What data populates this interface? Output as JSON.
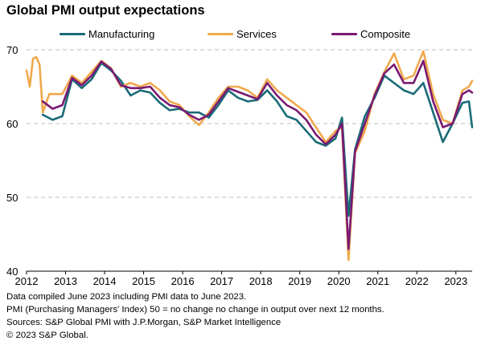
{
  "title": "Global PMI output expectations",
  "legend": [
    {
      "name": "Manufacturing",
      "color": "#1a6b78"
    },
    {
      "name": "Services",
      "color": "#f0a94c"
    },
    {
      "name": "Composite",
      "color": "#7a1a73"
    }
  ],
  "notes": [
    "Data compiled June 2023 including PMI data to June 2023.",
    "PMI (Purchasing Managers' Index) 50 = no change no change in output over next 12 months.",
    "Sources: S&P Global PMI with J.P.Morgan, S&P Market Intelligence",
    "© 2023 S&P Global."
  ],
  "chart_data": {
    "type": "line",
    "title": "Global PMI output expectations",
    "xlabel": "",
    "ylabel": "",
    "ylim": [
      40,
      70
    ],
    "xlim": [
      "2012-01",
      "2023-06"
    ],
    "yticks": [
      40,
      50,
      60,
      70
    ],
    "xticks": [
      "2012",
      "2013",
      "2014",
      "2015",
      "2016",
      "2017",
      "2018",
      "2019",
      "2020",
      "2021",
      "2022",
      "2023"
    ],
    "grid": "horizontal dashed",
    "legend_position": "top",
    "series": [
      {
        "name": "Manufacturing",
        "color": "#1a6b78",
        "points": [
          [
            "2012-06",
            61.2
          ],
          [
            "2012-09",
            60.5
          ],
          [
            "2012-12",
            61.0
          ],
          [
            "2013-03",
            66.0
          ],
          [
            "2013-06",
            64.8
          ],
          [
            "2013-09",
            66.0
          ],
          [
            "2013-12",
            68.2
          ],
          [
            "2014-03",
            67.2
          ],
          [
            "2014-06",
            65.8
          ],
          [
            "2014-09",
            63.8
          ],
          [
            "2014-12",
            64.5
          ],
          [
            "2015-03",
            64.2
          ],
          [
            "2015-06",
            62.8
          ],
          [
            "2015-09",
            61.8
          ],
          [
            "2015-12",
            62.0
          ],
          [
            "2016-03",
            61.5
          ],
          [
            "2016-06",
            61.5
          ],
          [
            "2016-09",
            60.8
          ],
          [
            "2016-12",
            62.5
          ],
          [
            "2017-03",
            64.5
          ],
          [
            "2017-06",
            63.5
          ],
          [
            "2017-09",
            63.0
          ],
          [
            "2017-12",
            63.2
          ],
          [
            "2018-03",
            64.5
          ],
          [
            "2018-06",
            63.0
          ],
          [
            "2018-09",
            61.0
          ],
          [
            "2018-12",
            60.5
          ],
          [
            "2019-03",
            59.0
          ],
          [
            "2019-06",
            57.5
          ],
          [
            "2019-09",
            57.0
          ],
          [
            "2019-12",
            58.0
          ],
          [
            "2020-02",
            60.8
          ],
          [
            "2020-04",
            47.5
          ],
          [
            "2020-06",
            56.5
          ],
          [
            "2020-09",
            61.0
          ],
          [
            "2020-12",
            63.5
          ],
          [
            "2021-03",
            66.5
          ],
          [
            "2021-06",
            65.5
          ],
          [
            "2021-09",
            64.5
          ],
          [
            "2021-12",
            64.0
          ],
          [
            "2022-03",
            65.5
          ],
          [
            "2022-06",
            61.5
          ],
          [
            "2022-09",
            57.5
          ],
          [
            "2022-12",
            60.0
          ],
          [
            "2023-03",
            62.8
          ],
          [
            "2023-05",
            63.0
          ],
          [
            "2023-06",
            59.5
          ]
        ]
      },
      {
        "name": "Services",
        "color": "#f0a94c",
        "points": [
          [
            "2012-01",
            67.2
          ],
          [
            "2012-02",
            65.0
          ],
          [
            "2012-03",
            68.8
          ],
          [
            "2012-04",
            69.0
          ],
          [
            "2012-05",
            68.0
          ],
          [
            "2012-06",
            61.5
          ],
          [
            "2012-08",
            64.0
          ],
          [
            "2012-12",
            64.0
          ],
          [
            "2013-03",
            66.5
          ],
          [
            "2013-06",
            65.5
          ],
          [
            "2013-09",
            67.0
          ],
          [
            "2013-12",
            68.5
          ],
          [
            "2014-03",
            67.5
          ],
          [
            "2014-06",
            65.0
          ],
          [
            "2014-09",
            65.5
          ],
          [
            "2014-12",
            65.0
          ],
          [
            "2015-03",
            65.5
          ],
          [
            "2015-06",
            64.5
          ],
          [
            "2015-09",
            63.0
          ],
          [
            "2015-12",
            62.5
          ],
          [
            "2016-03",
            61.0
          ],
          [
            "2016-06",
            59.8
          ],
          [
            "2016-09",
            61.5
          ],
          [
            "2016-12",
            63.5
          ],
          [
            "2017-03",
            65.0
          ],
          [
            "2017-06",
            65.0
          ],
          [
            "2017-09",
            64.5
          ],
          [
            "2017-12",
            63.5
          ],
          [
            "2018-03",
            66.0
          ],
          [
            "2018-06",
            64.5
          ],
          [
            "2018-09",
            63.5
          ],
          [
            "2018-12",
            62.5
          ],
          [
            "2019-03",
            61.5
          ],
          [
            "2019-06",
            59.5
          ],
          [
            "2019-09",
            57.5
          ],
          [
            "2019-12",
            59.0
          ],
          [
            "2020-02",
            59.5
          ],
          [
            "2020-04",
            41.5
          ],
          [
            "2020-06",
            56.0
          ],
          [
            "2020-09",
            59.0
          ],
          [
            "2020-12",
            64.0
          ],
          [
            "2021-03",
            67.0
          ],
          [
            "2021-06",
            69.5
          ],
          [
            "2021-09",
            66.0
          ],
          [
            "2021-12",
            66.5
          ],
          [
            "2022-03",
            69.8
          ],
          [
            "2022-06",
            64.0
          ],
          [
            "2022-09",
            60.5
          ],
          [
            "2022-12",
            60.0
          ],
          [
            "2023-03",
            64.5
          ],
          [
            "2023-05",
            65.0
          ],
          [
            "2023-06",
            65.8
          ]
        ]
      },
      {
        "name": "Composite",
        "color": "#7a1a73",
        "points": [
          [
            "2012-06",
            63.0
          ],
          [
            "2012-09",
            62.0
          ],
          [
            "2012-12",
            62.5
          ],
          [
            "2013-03",
            66.2
          ],
          [
            "2013-06",
            65.2
          ],
          [
            "2013-09",
            66.5
          ],
          [
            "2013-12",
            68.4
          ],
          [
            "2014-03",
            67.4
          ],
          [
            "2014-06",
            65.2
          ],
          [
            "2014-09",
            64.8
          ],
          [
            "2014-12",
            64.8
          ],
          [
            "2015-03",
            65.0
          ],
          [
            "2015-06",
            63.5
          ],
          [
            "2015-09",
            62.5
          ],
          [
            "2015-12",
            62.2
          ],
          [
            "2016-03",
            61.2
          ],
          [
            "2016-06",
            60.5
          ],
          [
            "2016-09",
            61.2
          ],
          [
            "2016-12",
            63.0
          ],
          [
            "2017-03",
            64.8
          ],
          [
            "2017-06",
            64.3
          ],
          [
            "2017-09",
            63.8
          ],
          [
            "2017-12",
            63.3
          ],
          [
            "2018-03",
            65.5
          ],
          [
            "2018-06",
            63.8
          ],
          [
            "2018-09",
            62.5
          ],
          [
            "2018-12",
            61.8
          ],
          [
            "2019-03",
            60.5
          ],
          [
            "2019-06",
            58.5
          ],
          [
            "2019-09",
            57.2
          ],
          [
            "2019-12",
            58.5
          ],
          [
            "2020-02",
            60.0
          ],
          [
            "2020-04",
            43.0
          ],
          [
            "2020-06",
            56.2
          ],
          [
            "2020-09",
            60.0
          ],
          [
            "2020-12",
            63.8
          ],
          [
            "2021-03",
            66.8
          ],
          [
            "2021-06",
            68.0
          ],
          [
            "2021-09",
            65.5
          ],
          [
            "2021-12",
            65.5
          ],
          [
            "2022-03",
            68.5
          ],
          [
            "2022-06",
            63.0
          ],
          [
            "2022-09",
            59.5
          ],
          [
            "2022-12",
            60.0
          ],
          [
            "2023-03",
            64.0
          ],
          [
            "2023-05",
            64.5
          ],
          [
            "2023-06",
            64.2
          ]
        ]
      }
    ]
  }
}
